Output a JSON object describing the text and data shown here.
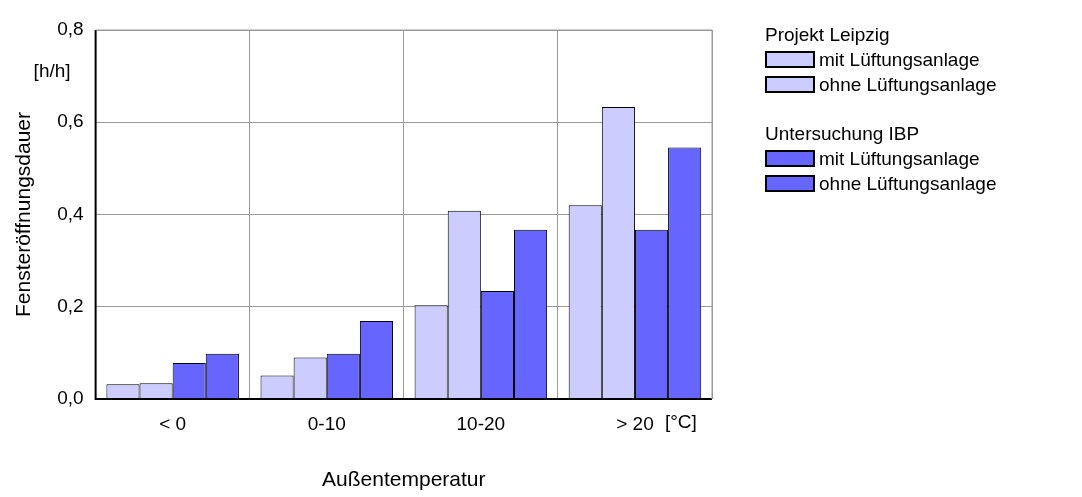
{
  "chart_data": {
    "type": "bar",
    "xlabel": "Außentemperatur",
    "ylabel": "Fensteröffnungsdauer",
    "categories": [
      "< 0",
      "0-10",
      "10-20",
      "> 20"
    ],
    "series": [
      {
        "name": "mit Lüftungsanlage",
        "color": "#ccccff",
        "values": [
          0.032,
          0.051,
          0.203,
          0.42
        ]
      },
      {
        "name": "ohne Lüftungsanlage",
        "color": "#ccccff",
        "values": [
          0.034,
          0.09,
          0.408,
          0.633
        ]
      },
      {
        "name": "mit Lüftungsanlage",
        "color": "#6666ff",
        "values": [
          0.078,
          0.098,
          0.234,
          0.367
        ]
      },
      {
        "name": "ohne Lüftungsanlage",
        "color": "#6666ff",
        "values": [
          0.098,
          0.169,
          0.367,
          0.545
        ]
      }
    ],
    "ylim": [
      0,
      0.8
    ],
    "yticks": [
      {
        "value": 0,
        "label": "0,0"
      },
      {
        "value": 0.2,
        "label": "0,2"
      },
      {
        "value": 0.4,
        "label": "0,4"
      },
      {
        "value": 0.6,
        "label": "0,6"
      },
      {
        "value": 0.8,
        "label": "0,8"
      }
    ],
    "grid": true,
    "legend": "right",
    "annotations": [
      "Projekt Leipzig",
      "Untersuchung IBP",
      "[h/h]",
      "[°C]"
    ]
  }
}
